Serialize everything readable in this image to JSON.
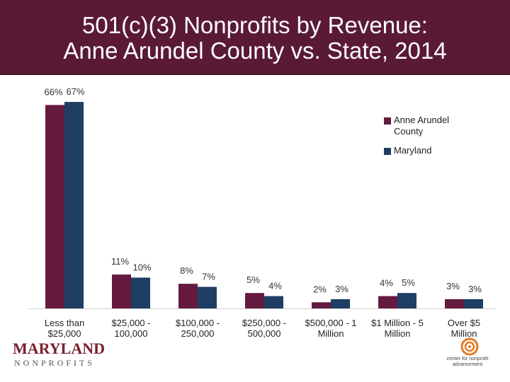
{
  "title": {
    "line1": "501(c)(3) Nonprofits by Revenue:",
    "line2": "Anne Arundel County vs. State, 2014"
  },
  "colors": {
    "title_bg": "#5a1a35",
    "anne_arundel": "#651a3f",
    "maryland": "#1f3e63"
  },
  "chart_data": {
    "type": "bar",
    "title": "501(c)(3) Nonprofits by Revenue: Anne Arundel County vs. State, 2014",
    "categories": [
      "Less than $25,000",
      "$25,000 - 100,000",
      "$100,000 - 250,000",
      "$250,000 - 500,000",
      "$500,000 - 1 Million",
      "$1 Million - 5 Million",
      "Over $5 Million"
    ],
    "category_lines": [
      [
        "Less than",
        "$25,000"
      ],
      [
        "$25,000 -",
        "100,000"
      ],
      [
        "$100,000 -",
        "250,000"
      ],
      [
        "$250,000 -",
        "500,000"
      ],
      [
        "$500,000 - 1",
        "Million"
      ],
      [
        "$1 Million - 5",
        "Million"
      ],
      [
        "Over $5",
        "Million"
      ]
    ],
    "series": [
      {
        "name": "Anne Arundel County",
        "values": [
          66,
          11,
          8,
          5,
          2,
          4,
          3
        ],
        "labels": [
          "66%",
          "11%",
          "8%",
          "5%",
          "2%",
          "4%",
          "3%"
        ]
      },
      {
        "name": "Maryland",
        "values": [
          67,
          10,
          7,
          4,
          3,
          5,
          3
        ],
        "labels": [
          "67%",
          "10%",
          "7%",
          "4%",
          "3%",
          "5%",
          "3%"
        ]
      }
    ],
    "ylim": [
      0,
      70
    ],
    "grid": false,
    "legend_position": "right"
  },
  "legend": {
    "items": [
      {
        "label_line1": "Anne Arundel",
        "label_line2": "County"
      },
      {
        "label_line1": "Maryland",
        "label_line2": ""
      }
    ]
  },
  "logos": {
    "maryland_nonprofits": {
      "word": "MARYLAND",
      "sub": "NONPROFITS"
    },
    "center_for_nonprofit": {
      "line1": "center for nonprofit",
      "line2": "advancement"
    }
  }
}
